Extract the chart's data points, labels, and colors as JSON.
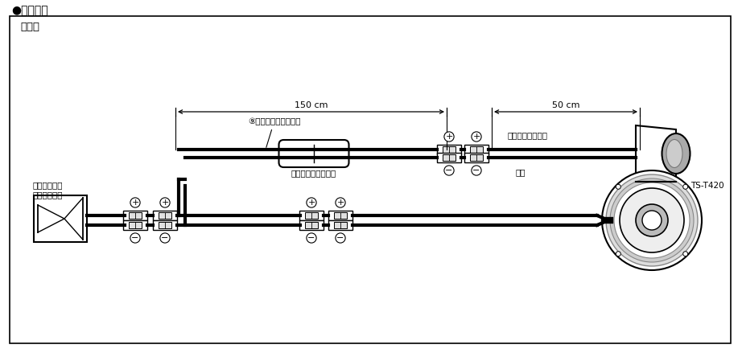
{
  "title": "●接続方法",
  "subtitle": "接続例",
  "bg_color": "#ffffff",
  "border_color": "#000000",
  "text_color": "#000000",
  "dim_150": "150 cm",
  "dim_50": "50 cm",
  "label_network": "⑨ネットワークコード",
  "label_filter": "ハイパスフィルター",
  "label_stripe": "黒線白ストライプ",
  "label_black": "黒線",
  "label_car": "カーステレオ\n・アンプなど",
  "label_ts": "TS-T420"
}
